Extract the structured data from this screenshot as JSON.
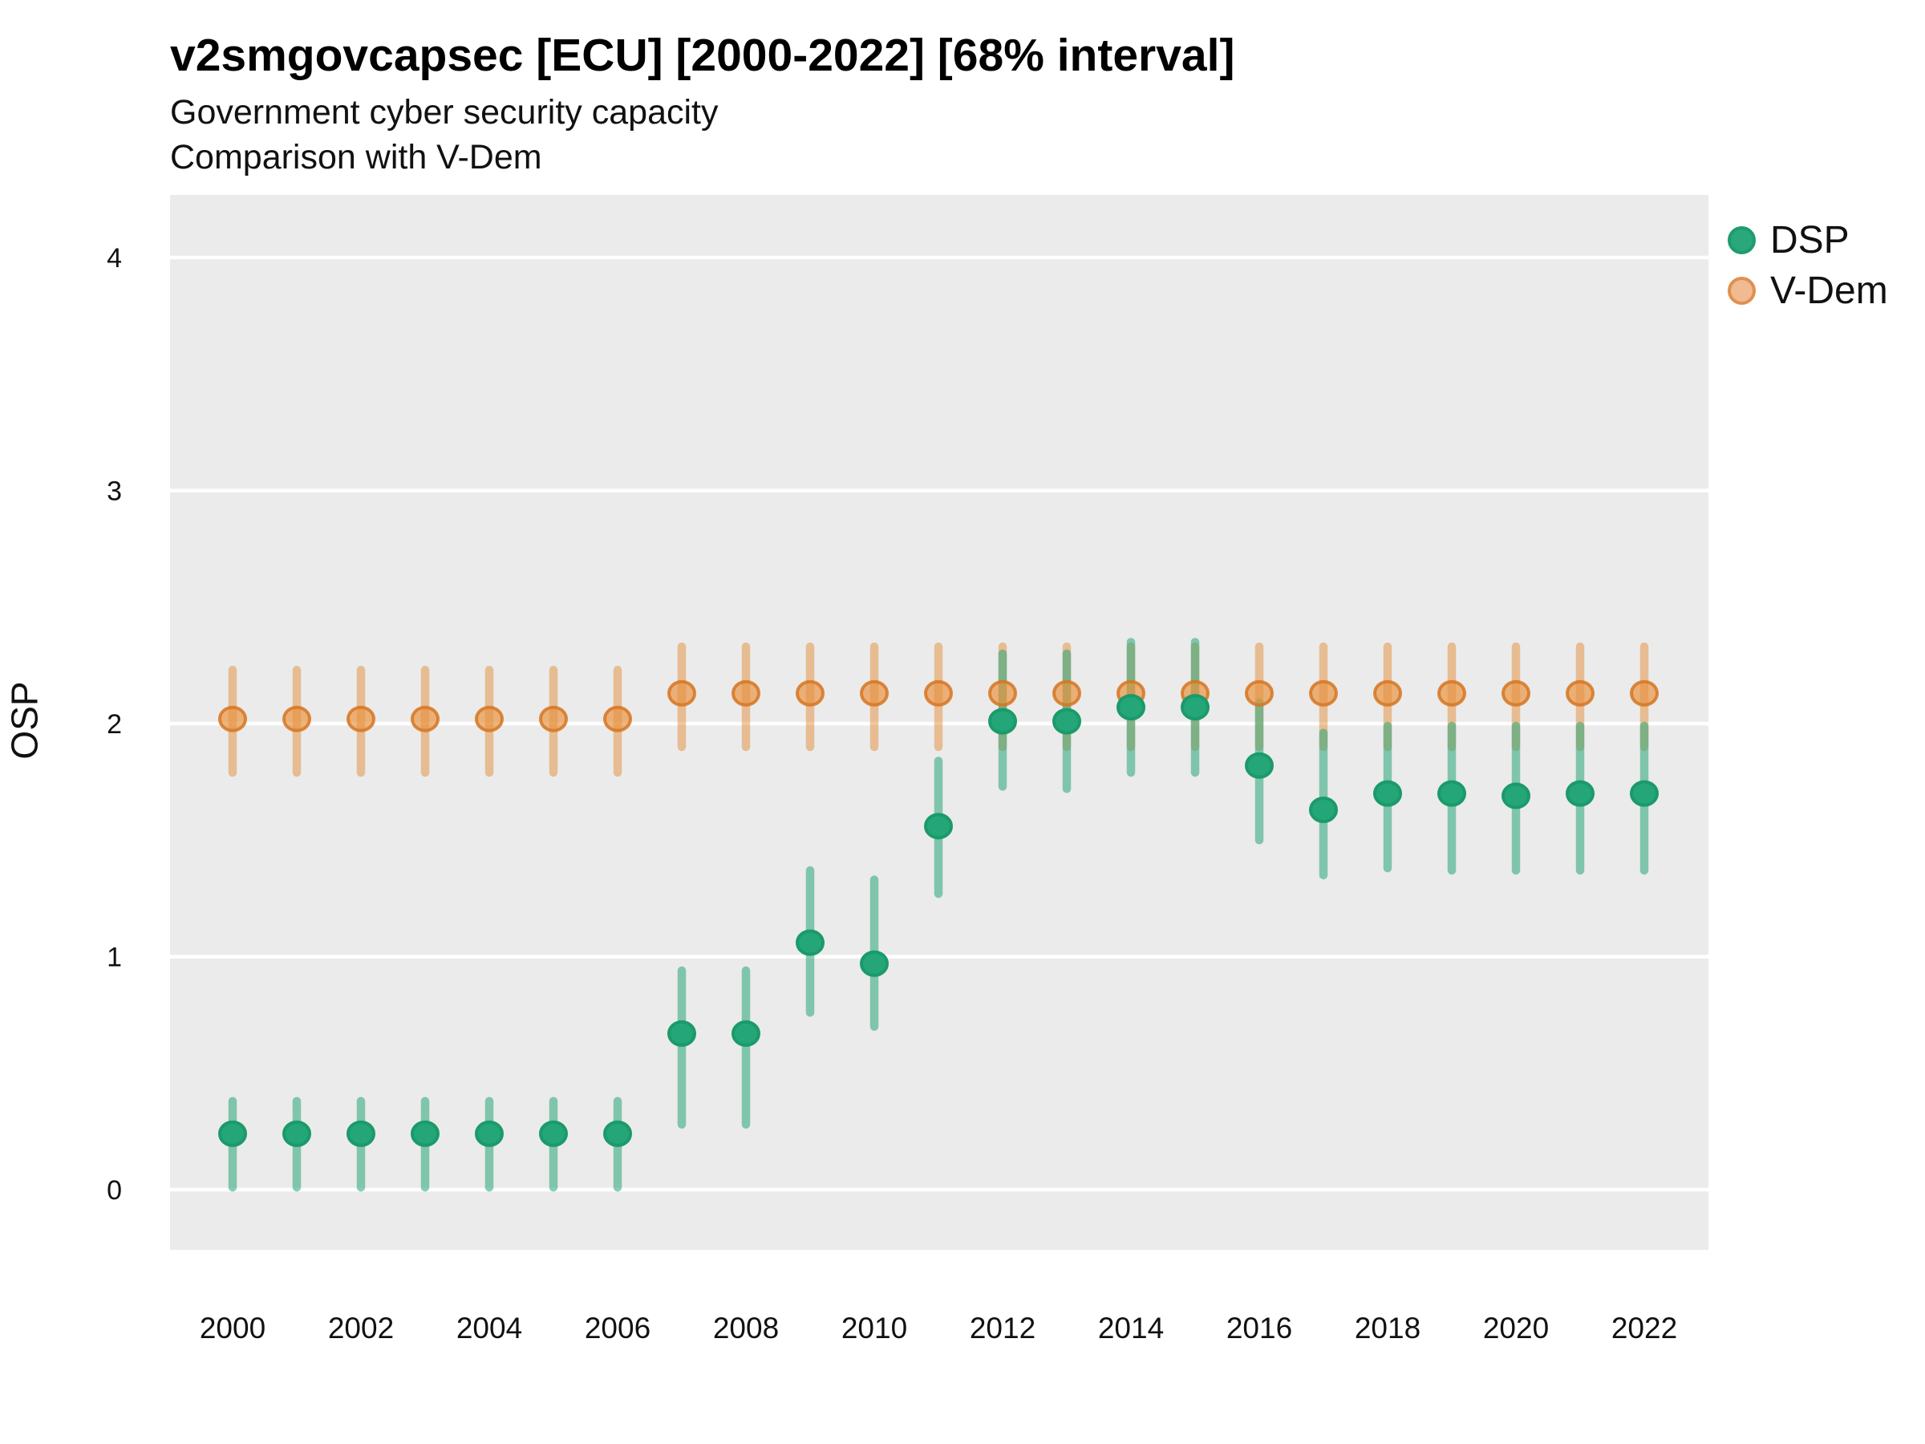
{
  "header": {
    "title": "v2smgovcapsec [ECU] [2000-2022] [68% interval]",
    "subtitle_line1": "Government cyber security capacity",
    "subtitle_line2": "Comparison with V-Dem"
  },
  "y_axis": {
    "title": "OSP",
    "ticks": [
      0,
      1,
      2,
      3,
      4
    ]
  },
  "x_axis": {
    "tick_labels": [
      2000,
      2002,
      2004,
      2006,
      2008,
      2010,
      2012,
      2014,
      2016,
      2018,
      2020,
      2022
    ]
  },
  "legend": {
    "position": "right",
    "items": [
      {
        "label": "DSP"
      },
      {
        "label": "V-Dem"
      }
    ]
  },
  "style": {
    "panel_bg": "#EBEBEB",
    "grid_color": "#FFFFFF",
    "text_color": "#111111",
    "dsp_fill": "#24A678",
    "dsp_stroke": "#1B9A6A",
    "dsp_interval": "rgba(38,166,120,0.55)",
    "vdem_fill": "rgba(232,146,62,0.68)",
    "vdem_stroke": "rgba(214,118,34,0.85)",
    "vdem_interval": "rgba(228,141,58,0.5)",
    "legend_dsp_dot": "#2AA87B",
    "legend_dsp_ring": "#1E9C6E",
    "legend_vdem_dot": "#F0BA92",
    "legend_vdem_ring": "#E1904F"
  },
  "chart_data": {
    "type": "pointrange",
    "title": "v2smgovcapsec [ECU] [2000-2022] [68% interval]",
    "subtitle": [
      "Government cyber security capacity",
      "Comparison with V-Dem"
    ],
    "interval": "68%",
    "xlabel": "",
    "ylabel": "OSP",
    "ylim": [
      -0.26,
      4.27
    ],
    "x_ticks": [
      2000,
      2002,
      2004,
      2006,
      2008,
      2010,
      2012,
      2014,
      2016,
      2018,
      2020,
      2022
    ],
    "y_ticks": [
      0,
      1,
      2,
      3,
      4
    ],
    "grid": "horizontal-major-only",
    "legend_position": "right",
    "x": [
      2000,
      2001,
      2002,
      2003,
      2004,
      2005,
      2006,
      2007,
      2008,
      2009,
      2010,
      2011,
      2012,
      2013,
      2014,
      2015,
      2016,
      2017,
      2018,
      2019,
      2020,
      2021,
      2022
    ],
    "series": [
      {
        "name": "DSP",
        "color": "#24A678",
        "values": [
          0.24,
          0.24,
          0.24,
          0.24,
          0.24,
          0.24,
          0.24,
          0.67,
          0.67,
          1.06,
          0.97,
          1.56,
          2.01,
          2.01,
          2.07,
          2.07,
          1.82,
          1.63,
          1.7,
          1.7,
          1.69,
          1.7,
          1.7
        ],
        "lower": [
          0.01,
          0.01,
          0.01,
          0.01,
          0.01,
          0.01,
          0.01,
          0.28,
          0.28,
          0.76,
          0.7,
          1.27,
          1.73,
          1.72,
          1.79,
          1.79,
          1.5,
          1.35,
          1.38,
          1.37,
          1.37,
          1.37,
          1.37
        ],
        "upper": [
          0.38,
          0.38,
          0.38,
          0.38,
          0.38,
          0.38,
          0.38,
          0.94,
          0.94,
          1.37,
          1.33,
          1.84,
          2.3,
          2.3,
          2.35,
          2.35,
          2.09,
          1.96,
          1.99,
          1.99,
          1.99,
          1.99,
          1.99
        ]
      },
      {
        "name": "V-Dem",
        "color": "#E8913D",
        "values": [
          2.02,
          2.02,
          2.02,
          2.02,
          2.02,
          2.02,
          2.02,
          2.13,
          2.13,
          2.13,
          2.13,
          2.13,
          2.13,
          2.13,
          2.13,
          2.13,
          2.13,
          2.13,
          2.13,
          2.13,
          2.13,
          2.13,
          2.13
        ],
        "lower": [
          1.79,
          1.79,
          1.79,
          1.79,
          1.79,
          1.79,
          1.79,
          1.9,
          1.9,
          1.9,
          1.9,
          1.9,
          1.9,
          1.9,
          1.9,
          1.9,
          1.9,
          1.9,
          1.9,
          1.9,
          1.9,
          1.9,
          1.9
        ],
        "upper": [
          2.23,
          2.23,
          2.23,
          2.23,
          2.23,
          2.23,
          2.23,
          2.33,
          2.33,
          2.33,
          2.33,
          2.33,
          2.33,
          2.33,
          2.33,
          2.33,
          2.33,
          2.33,
          2.33,
          2.33,
          2.33,
          2.33,
          2.33
        ]
      }
    ]
  }
}
